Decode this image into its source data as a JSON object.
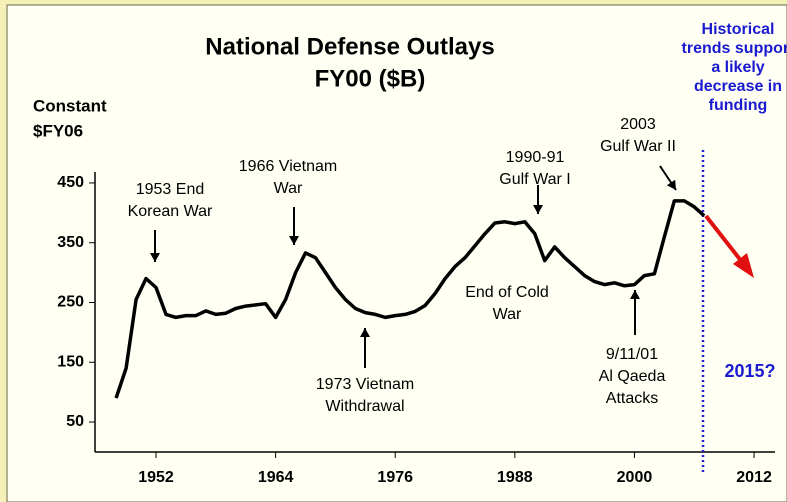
{
  "chart_data": {
    "type": "line",
    "title": [
      "National Defense Outlays",
      "FY00 ($B)"
    ],
    "y_label": [
      "Constant",
      "$FY06"
    ],
    "x": [
      1948,
      1949,
      1950,
      1951,
      1952,
      1953,
      1954,
      1955,
      1956,
      1957,
      1958,
      1959,
      1960,
      1961,
      1962,
      1963,
      1964,
      1965,
      1966,
      1967,
      1968,
      1969,
      1970,
      1971,
      1972,
      1973,
      1974,
      1975,
      1976,
      1977,
      1978,
      1979,
      1980,
      1981,
      1982,
      1983,
      1984,
      1985,
      1986,
      1987,
      1988,
      1989,
      1990,
      1991,
      1992,
      1993,
      1994,
      1995,
      1996,
      1997,
      1998,
      1999,
      2000,
      2001,
      2002,
      2003,
      2004,
      2005,
      2006,
      2007
    ],
    "values": [
      90,
      140,
      255,
      290,
      275,
      230,
      225,
      228,
      228,
      236,
      230,
      232,
      240,
      244,
      246,
      248,
      225,
      255,
      300,
      333,
      325,
      300,
      275,
      255,
      240,
      233,
      230,
      225,
      228,
      230,
      235,
      245,
      265,
      290,
      310,
      325,
      345,
      365,
      383,
      385,
      382,
      385,
      365,
      320,
      343,
      325,
      310,
      295,
      285,
      280,
      283,
      278,
      280,
      295,
      298,
      360,
      420,
      420,
      410,
      395
    ],
    "color": "#000000",
    "xlim": [
      1946,
      2014
    ],
    "xticks": [
      1952,
      1964,
      1976,
      1988,
      2000,
      2012
    ],
    "ylim": [
      0,
      470
    ],
    "yticks": [
      50,
      150,
      250,
      350,
      450
    ],
    "annotations": [
      {
        "lines": [
          "1953 End",
          "Korean War"
        ]
      },
      {
        "lines": [
          "1966 Vietnam",
          "War"
        ]
      },
      {
        "lines": [
          "1973 Vietnam",
          "Withdrawal"
        ]
      },
      {
        "lines": [
          "1990-91",
          "Gulf War I"
        ]
      },
      {
        "lines": [
          "End of Cold",
          "War"
        ]
      },
      {
        "lines": [
          "2003",
          "Gulf War II"
        ]
      },
      {
        "lines": [
          "9/11/01",
          "Al Qaeda",
          "Attacks"
        ]
      }
    ],
    "projection_note": [
      "Historical",
      "trends support",
      "a likely",
      "decrease in",
      "funding"
    ],
    "projection_label": "2015?"
  }
}
